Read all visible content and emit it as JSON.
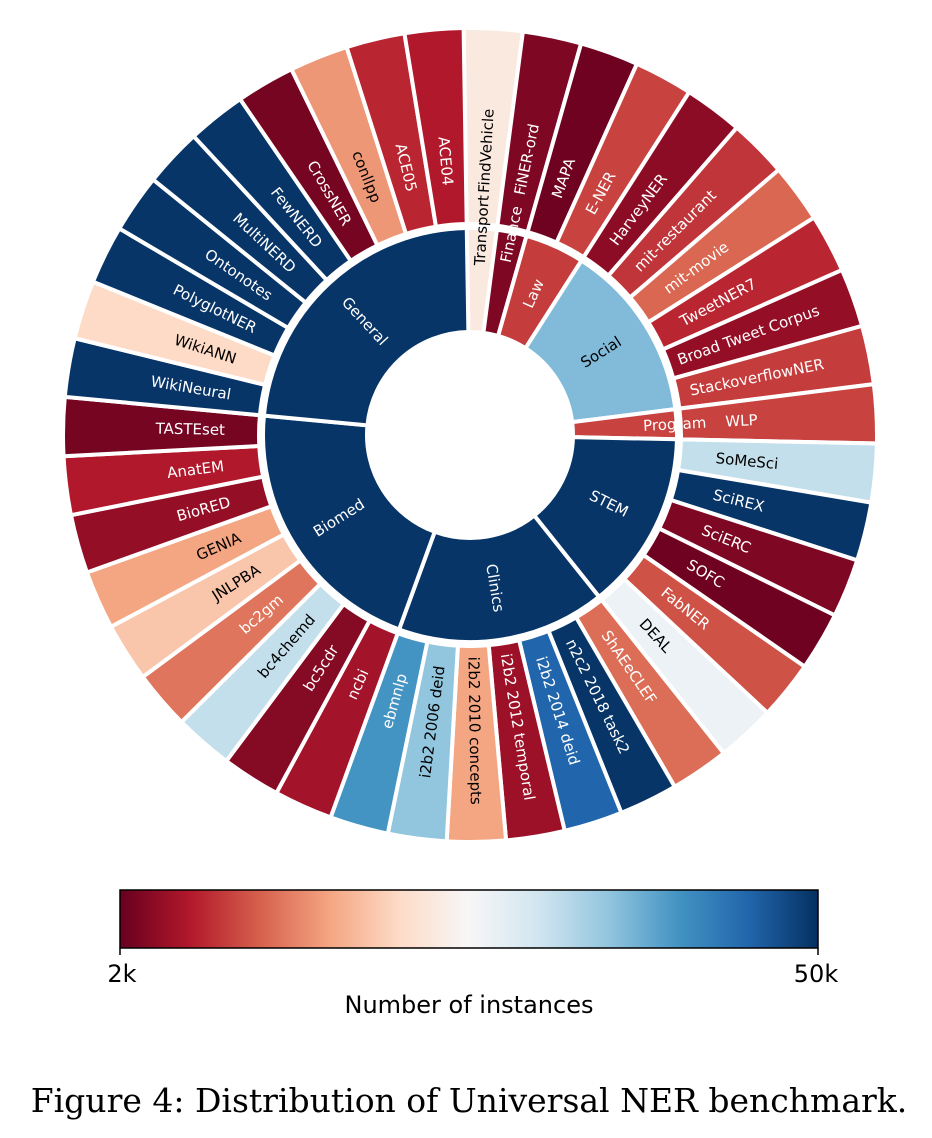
{
  "chart_data": {
    "type": "sunburst",
    "title": "",
    "value_label": "Number of instances",
    "colorbar": {
      "label": "Number of instances",
      "min_label": "2k",
      "max_label": "50k",
      "colormap": "RdBu",
      "stops": [
        "#67001f",
        "#b2182b",
        "#d6604d",
        "#f4a582",
        "#fddbc7",
        "#f7f7f7",
        "#d1e5f0",
        "#92c5de",
        "#4393c3",
        "#2166ac",
        "#053061"
      ]
    },
    "categories": [
      {
        "name": "Transport",
        "color_value": 0.45,
        "datasets": [
          {
            "name": "FindVehicle",
            "color_value": 0.45
          }
        ]
      },
      {
        "name": "Finance",
        "color_value": 0.03,
        "datasets": [
          {
            "name": "FiNER-ord",
            "color_value": 0.03
          }
        ]
      },
      {
        "name": "Law",
        "color_value": 0.15,
        "datasets": [
          {
            "name": "MAPA",
            "color_value": 0.01
          },
          {
            "name": "E-NER",
            "color_value": 0.16
          }
        ]
      },
      {
        "name": "Social",
        "color_value": 0.72,
        "datasets": [
          {
            "name": "HarveyNER",
            "color_value": 0.05
          },
          {
            "name": "mit-restaurant",
            "color_value": 0.14
          },
          {
            "name": "mit-movie",
            "color_value": 0.21
          },
          {
            "name": "TweetNER7",
            "color_value": 0.12
          },
          {
            "name": "Broad Tweet Corpus",
            "color_value": 0.06
          },
          {
            "name": "StackoverflowNER",
            "color_value": 0.15
          }
        ]
      },
      {
        "name": "Program",
        "color_value": 0.16,
        "datasets": [
          {
            "name": "WLP",
            "color_value": 0.16
          }
        ]
      },
      {
        "name": "STEM",
        "color_value": 0.99,
        "datasets": [
          {
            "name": "SoMeSci",
            "color_value": 0.62
          },
          {
            "name": "SciREX",
            "color_value": 0.99
          },
          {
            "name": "SciERC",
            "color_value": 0.03
          },
          {
            "name": "SOFC",
            "color_value": 0.01
          },
          {
            "name": "FabNER",
            "color_value": 0.18
          },
          {
            "name": "DEAL",
            "color_value": 0.53
          }
        ]
      },
      {
        "name": "Clinics",
        "color_value": 0.99,
        "datasets": [
          {
            "name": "ShAEeCLEF",
            "color_value": 0.22
          },
          {
            "name": "n2c2 2018 task2",
            "color_value": 0.99
          },
          {
            "name": "i2b2 2014 deid",
            "color_value": 0.9
          },
          {
            "name": "i2b2 2012 temporal",
            "color_value": 0.07
          },
          {
            "name": "i2b2 2010 concepts",
            "color_value": 0.3
          },
          {
            "name": "i2b2 2006 deid",
            "color_value": 0.7
          },
          {
            "name": "ebmnlp",
            "color_value": 0.8
          }
        ]
      },
      {
        "name": "Biomed",
        "color_value": 0.99,
        "datasets": [
          {
            "name": "ncbi",
            "color_value": 0.08
          },
          {
            "name": "bc5cdr",
            "color_value": 0.04
          },
          {
            "name": "bc4chemd",
            "color_value": 0.62
          },
          {
            "name": "bc2gm",
            "color_value": 0.23
          },
          {
            "name": "JNLPBA",
            "color_value": 0.36
          },
          {
            "name": "GENIA",
            "color_value": 0.3
          },
          {
            "name": "BioRED",
            "color_value": 0.06
          },
          {
            "name": "AnatEM",
            "color_value": 0.1
          },
          {
            "name": "TASTEset",
            "color_value": 0.02
          }
        ]
      },
      {
        "name": "General",
        "color_value": 0.99,
        "datasets": [
          {
            "name": "WikiNeural",
            "color_value": 0.99
          },
          {
            "name": "WikiANN",
            "color_value": 0.4
          },
          {
            "name": "PolyglotNER",
            "color_value": 0.99
          },
          {
            "name": "Ontonotes",
            "color_value": 0.99
          },
          {
            "name": "MultiNERD",
            "color_value": 0.99
          },
          {
            "name": "FewNERD",
            "color_value": 0.99
          },
          {
            "name": "CrossNER",
            "color_value": 0.02
          },
          {
            "name": "conllpp",
            "color_value": 0.28
          },
          {
            "name": "ACE05",
            "color_value": 0.12
          },
          {
            "name": "ACE04",
            "color_value": 0.1
          }
        ]
      }
    ]
  },
  "caption": "Figure 4: Distribution of Universal NER benchmark."
}
